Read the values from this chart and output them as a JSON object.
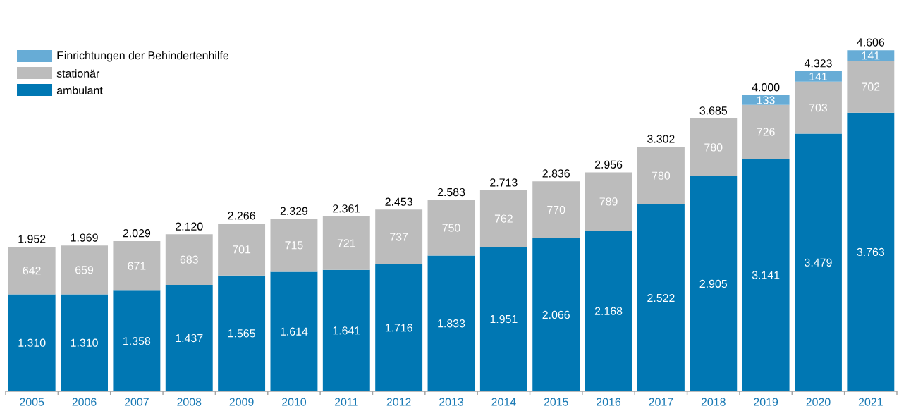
{
  "chart_data": {
    "type": "bar",
    "stacked": true,
    "legend": "top left",
    "data_labels": true,
    "categories": [
      "2005",
      "2006",
      "2007",
      "2008",
      "2009",
      "2010",
      "2011",
      "2012",
      "2013",
      "2014",
      "2015",
      "2016",
      "2017",
      "2018",
      "2019",
      "2020",
      "2021"
    ],
    "series": [
      {
        "name": "ambulant",
        "color": "#0077b3",
        "values": [
          1310,
          1310,
          1358,
          1437,
          1565,
          1614,
          1641,
          1716,
          1833,
          1951,
          2066,
          2168,
          2522,
          2905,
          3141,
          3479,
          3763
        ],
        "value_labels": [
          "1.310",
          "1.310",
          "1.358",
          "1.437",
          "1.565",
          "1.614",
          "1.641",
          "1.716",
          "1.833",
          "1.951",
          "2.066",
          "2.168",
          "2.522",
          "2.905",
          "3.141",
          "3.479",
          "3.763"
        ]
      },
      {
        "name": "stationär",
        "color": "#bcbcbc",
        "values": [
          642,
          659,
          671,
          683,
          701,
          715,
          721,
          737,
          750,
          762,
          770,
          789,
          780,
          780,
          726,
          703,
          702
        ],
        "value_labels": [
          "642",
          "659",
          "671",
          "683",
          "701",
          "715",
          "721",
          "737",
          "750",
          "762",
          "770",
          "789",
          "780",
          "780",
          "726",
          "703",
          "702"
        ]
      },
      {
        "name": "Einrichtungen der Behindertenhilfe",
        "color": "#67acd6",
        "values": [
          null,
          null,
          null,
          null,
          null,
          null,
          null,
          null,
          null,
          null,
          null,
          null,
          null,
          null,
          133,
          141,
          141
        ],
        "value_labels": [
          null,
          null,
          null,
          null,
          null,
          null,
          null,
          null,
          null,
          null,
          null,
          null,
          null,
          null,
          "133",
          "141",
          "141"
        ]
      }
    ],
    "totals": [
      "1.952",
      "1.969",
      "2.029",
      "2.120",
      "2.266",
      "2.329",
      "2.361",
      "2.453",
      "2.583",
      "2.713",
      "2.836",
      "2.956",
      "3.302",
      "3.685",
      "4.000",
      "4.323",
      "4.606"
    ]
  }
}
